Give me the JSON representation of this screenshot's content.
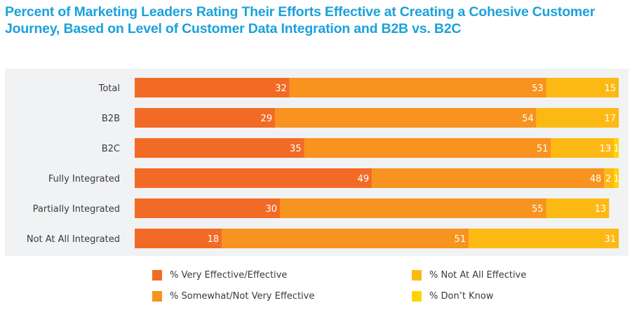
{
  "chart_data": {
    "type": "bar",
    "orientation": "horizontal",
    "stacked": true,
    "title": "Percent of Marketing Leaders Rating Their Efforts Effective at Creating a Cohesive Customer Journey, Based on Level of Customer Data Integration and B2B vs. B2C",
    "xlabel": "",
    "ylabel": "",
    "xlim": [
      0,
      100
    ],
    "grid": false,
    "legend_position": "bottom",
    "categories": [
      "Total",
      "B2B",
      "B2C",
      "Fully Integrated",
      "Partially Integrated",
      "Not At All Integrated"
    ],
    "series": [
      {
        "name": "% Very Effective/Effective",
        "color": "#f26b26",
        "values": [
          32,
          29,
          35,
          49,
          30,
          18
        ]
      },
      {
        "name": "% Somewhat/Not Very Effective",
        "color": "#f7931e",
        "values": [
          53,
          54,
          51,
          48,
          55,
          51
        ]
      },
      {
        "name": "% Not At All Effective",
        "color": "#fdb913",
        "values": [
          15,
          17,
          13,
          2,
          13,
          31
        ]
      },
      {
        "name": "% Don't Know",
        "color": "#ffd400",
        "values": [
          0,
          0,
          1,
          1,
          0,
          0
        ]
      }
    ]
  },
  "legend": {
    "items": [
      {
        "label": "% Very Effective/Effective",
        "color": "#f26b26"
      },
      {
        "label": "% Somewhat/Not Very Effective",
        "color": "#f7931e"
      },
      {
        "label": "% Not At All Effective",
        "color": "#fdb913"
      },
      {
        "label": "% Don’t Know",
        "color": "#ffd400"
      }
    ]
  }
}
